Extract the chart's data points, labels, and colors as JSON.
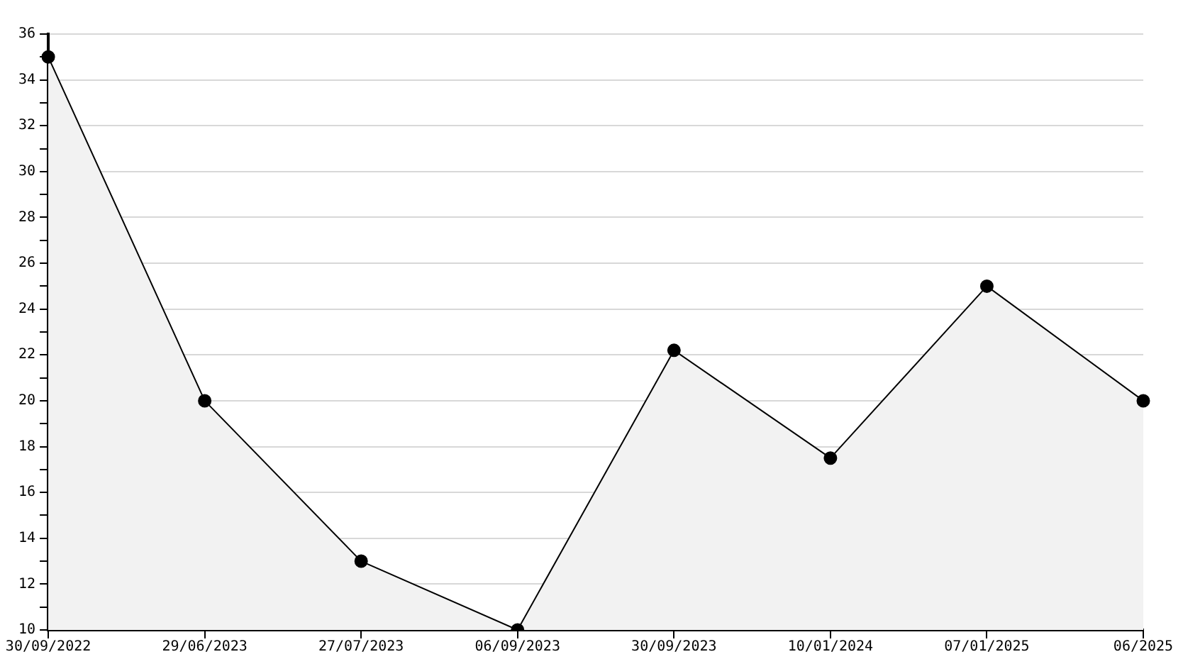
{
  "chart_data": {
    "type": "area",
    "categories": [
      "30/09/2022",
      "29/06/2023",
      "27/07/2023",
      "06/09/2023",
      "30/09/2023",
      "10/01/2024",
      "07/01/2025",
      "06/2025"
    ],
    "series": [
      {
        "color": "#000000",
        "values": [
          35,
          20,
          13,
          10,
          22.2,
          17.5,
          25,
          20
        ]
      }
    ],
    "ylim": [
      10,
      36
    ],
    "yticks": [
      10,
      {
        "value": 11,
        "label": null
      },
      12,
      {
        "value": 13,
        "label": null
      },
      14,
      {
        "value": 15,
        "label": null
      },
      16,
      {
        "value": 17,
        "label": null
      },
      18,
      {
        "value": 19,
        "label": null
      },
      20,
      {
        "value": 21,
        "label": null
      },
      22,
      {
        "value": 23,
        "label": null
      },
      24,
      {
        "value": 25,
        "label": null
      },
      26,
      {
        "value": 27,
        "label": null
      },
      28,
      {
        "value": 29,
        "label": null
      },
      30,
      {
        "value": 31,
        "label": null
      },
      32,
      {
        "value": 33,
        "label": null
      },
      34,
      {
        "value": 35,
        "label": null
      },
      36
    ],
    "grid": "y",
    "legend": false,
    "marker": "circle",
    "line_style": "solid"
  }
}
